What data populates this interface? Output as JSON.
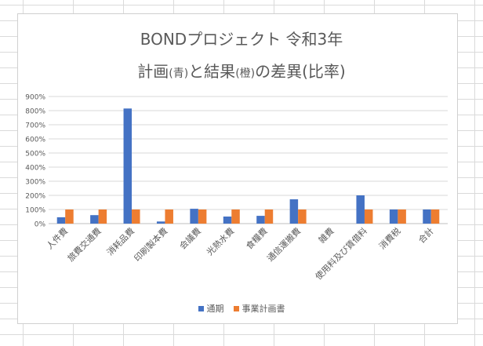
{
  "chart_data": {
    "type": "bar",
    "title_line1": "BONDプロジェクト 令和3年",
    "title_line2": {
      "a": "計画",
      "b": "(青)",
      "c": "と結果",
      "d": "(橙)",
      "e": "の差異(比率)"
    },
    "categories": [
      "人件費",
      "旅費交通費",
      "消耗品費",
      "印刷製本費",
      "会議費",
      "光熱水費",
      "食糧費",
      "通信運搬費",
      "雑費",
      "使用料及び賃借料",
      "消費税",
      "合計"
    ],
    "series": [
      {
        "name": "通期",
        "color": "#4472c4",
        "values": [
          45,
          60,
          815,
          15,
          105,
          50,
          55,
          172,
          0,
          200,
          100,
          100
        ]
      },
      {
        "name": "事業計画書",
        "color": "#ed7d31",
        "values": [
          100,
          100,
          100,
          100,
          100,
          100,
          100,
          100,
          0,
          100,
          100,
          100
        ]
      }
    ],
    "y_ticks": [
      "0%",
      "100%",
      "200%",
      "300%",
      "400%",
      "500%",
      "600%",
      "700%",
      "800%",
      "900%"
    ],
    "ylim": [
      0,
      900
    ],
    "grid": true,
    "legend_position": "bottom"
  }
}
